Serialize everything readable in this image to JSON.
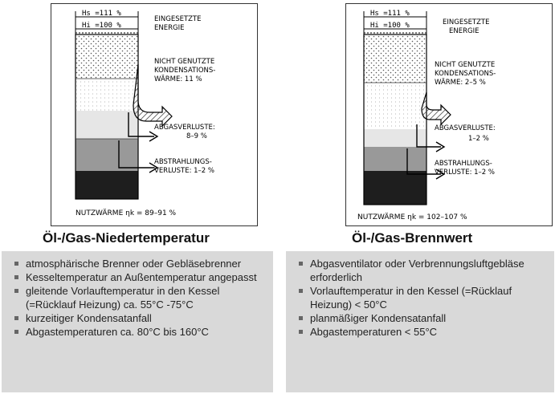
{
  "left": {
    "hs": "Hs =111 %",
    "hi": "Hi =100 %",
    "energy": [
      "EINGESETZTE",
      "ENERGIE"
    ],
    "condensation": [
      "NICHT GENUTZTE",
      "KONDENSATIONS-",
      "WÄRME:   11 %"
    ],
    "flue_gas": [
      "ABGASVERLUSTE:",
      "8–9 %"
    ],
    "radiation": [
      "ABSTRAHLUNGS-",
      "VERLUSTE: 1–2 %"
    ],
    "useful": "NUTZWÄRME  ηk = 89–91 %",
    "title": "Öl-/Gas-Niedertemperatur",
    "bullets": [
      "atmosphärische Brenner oder Gebläsebrenner",
      "Kesseltemperatur an Außentemperatur angepasst",
      "gleitende Vorlauftemperatur in den Kessel (=Rücklauf Heizung) ca. 55°C -75°C",
      "kurzeitiger Kondensatanfall",
      "Abgastemperaturen ca. 80°C bis 160°C"
    ]
  },
  "right": {
    "hs": "Hs =111 %",
    "hi": "Hi =100 %",
    "energy": [
      "EINGESETZTE",
      "ENERGIE"
    ],
    "condensation": [
      "NICHT GENUTZTE",
      "KONDENSATIONS-",
      "WÄRME:  2–5 %"
    ],
    "flue_gas": [
      "ABGASVERLUSTE:",
      "1–2 %"
    ],
    "radiation": [
      "ABSTRAHLUNGS-",
      "VERLUSTE: 1–2 %"
    ],
    "useful": "NUTZWÄRME  ηk = 102–107 %",
    "title": "Öl-/Gas-Brennwert",
    "bullets": [
      "Abgasventilator oder Verbrennungsluftgebläse erforderlich",
      "Vorlauftemperatur in den Kessel (=Rücklauf Heizung) < 50°C",
      "planmäßiger Kondensatanfall",
      "Abgastemperaturen < 55°C"
    ]
  },
  "colors": {
    "panel": "#d9d9d9",
    "bullet": "#666666",
    "ink": "#222222"
  }
}
